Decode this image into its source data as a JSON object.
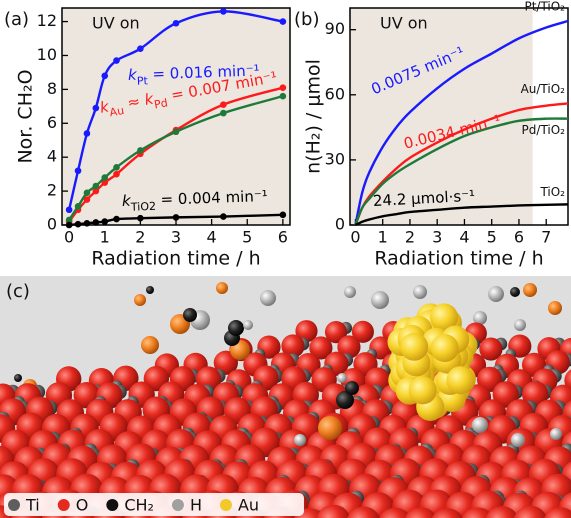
{
  "chart_data": [
    {
      "type": "line",
      "panel_label": "(a)",
      "region_label": "UV on",
      "region_color": "#ece6df",
      "x_label": "Radiation time / h",
      "y_label": "Nor. CH₂O",
      "markers": true,
      "x": [
        0,
        0.25,
        0.5,
        0.75,
        1,
        1.33,
        2,
        3,
        4.33,
        6
      ],
      "series": [
        {
          "color": "#1a1aff",
          "values": [
            0.9,
            3.2,
            5.4,
            6.9,
            8.8,
            9.7,
            10.4,
            11.9,
            12.6,
            12.0
          ]
        },
        {
          "color": "#ff1a1a",
          "values": [
            0.2,
            0.9,
            1.5,
            2.0,
            2.5,
            3.0,
            4.2,
            5.6,
            7.1,
            8.1
          ]
        },
        {
          "color": "#1f7a3a",
          "values": [
            0.3,
            1.1,
            1.9,
            2.3,
            2.8,
            3.4,
            4.4,
            5.5,
            6.6,
            7.6
          ]
        },
        {
          "color": "#000000",
          "values": [
            0,
            0.05,
            0.1,
            0.15,
            0.2,
            0.35,
            0.4,
            0.45,
            0.5,
            0.6
          ]
        }
      ],
      "uv_region": [
        -0.2,
        6.2
      ],
      "xlim": [
        -0.2,
        6.2
      ],
      "ylim": [
        0,
        12.8
      ],
      "xticks": [
        0,
        1,
        2,
        3,
        4,
        5,
        6
      ],
      "yticks": [
        0,
        2,
        4,
        6,
        8,
        10,
        12
      ],
      "annotations": [
        {
          "color": "#1a1aff",
          "parts": [
            {
              "text": "k",
              "style": "italic"
            },
            {
              "text": "Pt",
              "style": "sub"
            },
            {
              "text": " = 0.016 min⁻¹"
            }
          ]
        },
        {
          "color": "#ff1a1a",
          "parts": [
            {
              "text": "k",
              "style": "italic"
            },
            {
              "text": "Au",
              "style": "sub"
            },
            {
              "text": " ≈ "
            },
            {
              "text": "k",
              "style": "italic"
            },
            {
              "text": "Pd",
              "style": "sub"
            },
            {
              "text": " = 0.007 min⁻¹"
            }
          ]
        },
        {
          "color": "#000000",
          "parts": [
            {
              "text": "k",
              "style": "italic"
            },
            {
              "text": "TiO2",
              "style": "sub"
            },
            {
              "text": " = 0.004 min⁻¹"
            }
          ]
        }
      ]
    },
    {
      "type": "line",
      "panel_label": "(b)",
      "region_label": "UV on",
      "region_color": "#ece6df",
      "x_label": "Radiation time / h",
      "y_label": "n(H₂) / μmol",
      "markers": false,
      "x": [
        0,
        0.25,
        0.5,
        1,
        1.5,
        2,
        3,
        4,
        5,
        6,
        7,
        7.8
      ],
      "series": [
        {
          "name": "Pt/TiO₂",
          "color": "#1a1aff",
          "values": [
            0,
            15,
            24,
            36,
            45,
            52,
            63,
            72,
            79,
            86,
            91,
            94
          ]
        },
        {
          "name": "Au/TiO₂",
          "color": "#ff1a1a",
          "values": [
            0,
            8,
            13,
            20,
            26,
            31,
            38,
            44,
            49,
            53,
            55,
            56
          ]
        },
        {
          "name": "Pd/TiO₂",
          "color": "#1f7a3a",
          "values": [
            0,
            8,
            12,
            19,
            24,
            28,
            35,
            41,
            45,
            48,
            49,
            49
          ]
        },
        {
          "name": "TiO₂",
          "color": "#000000",
          "values": [
            0,
            1.5,
            2.5,
            4,
            5,
            6,
            7,
            8,
            8.5,
            9,
            9.3,
            9.5
          ]
        }
      ],
      "uv_region": [
        -0.2,
        6.5
      ],
      "xlim": [
        -0.2,
        7.8
      ],
      "ylim": [
        0,
        100
      ],
      "xticks": [
        0,
        1,
        2,
        3,
        4,
        5,
        6,
        7
      ],
      "yticks": [
        0,
        30,
        60,
        90
      ],
      "annotations": [
        {
          "color": "#1a1aff",
          "parts": [
            {
              "text": "0.0075 min⁻¹"
            }
          ]
        },
        {
          "color": "#ff1a1a",
          "parts": [
            {
              "text": "0.0034 min⁻¹"
            }
          ]
        },
        {
          "color": "#000000",
          "parts": [
            {
              "text": "24.2 μmol·s⁻¹"
            }
          ]
        }
      ]
    }
  ],
  "panel_c": {
    "label": "(c)",
    "legend": [
      {
        "name": "Ti",
        "color": "#5e5e5e"
      },
      {
        "name": "O",
        "color": "#e52a1f"
      },
      {
        "name": "CH₂",
        "color": "#111111"
      },
      {
        "name": "H",
        "color": "#a0a0a0"
      },
      {
        "name": "Au",
        "color": "#f2c82a"
      }
    ]
  }
}
